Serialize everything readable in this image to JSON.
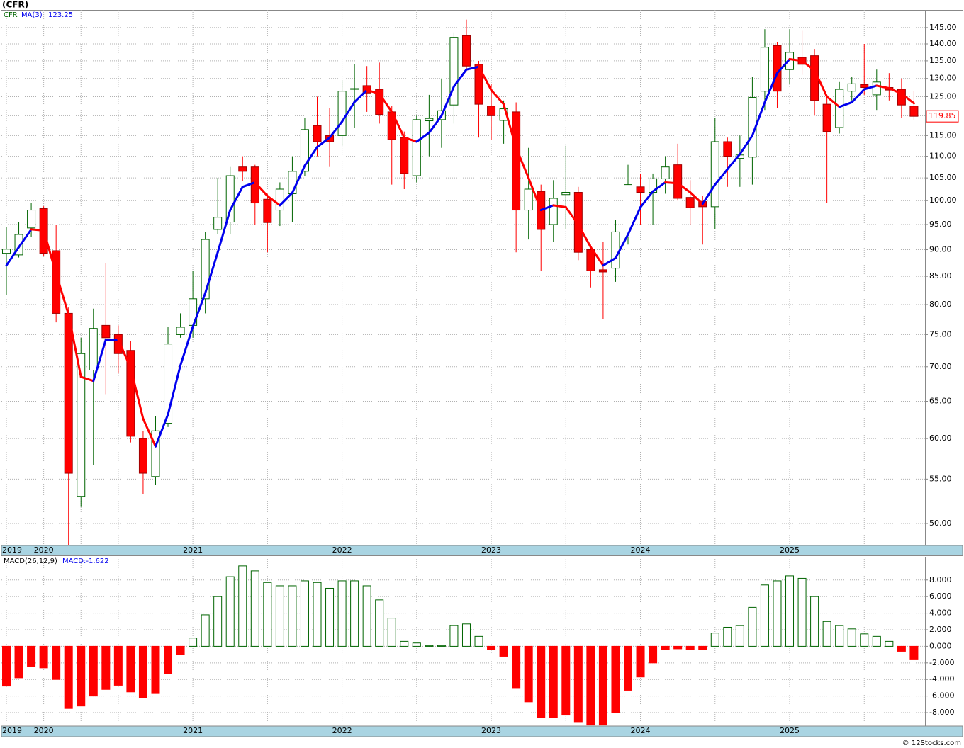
{
  "title": "(CFR)",
  "footer": "© 12Stocks.com",
  "chart_data": [
    {
      "type": "candlestick",
      "log": true,
      "grid": true,
      "categories": [
        "2019",
        null,
        null,
        "2020",
        null,
        null,
        null,
        null,
        null,
        null,
        null,
        null,
        null,
        null,
        null,
        "2021",
        null,
        null,
        null,
        null,
        null,
        null,
        null,
        null,
        null,
        null,
        null,
        "2022",
        null,
        null,
        null,
        null,
        null,
        null,
        null,
        null,
        null,
        null,
        null,
        "2023",
        null,
        null,
        null,
        null,
        null,
        null,
        null,
        null,
        null,
        null,
        null,
        "2024",
        null,
        null,
        null,
        null,
        null,
        null,
        null,
        null,
        null,
        null,
        null,
        "2025",
        null,
        null,
        null,
        null,
        null,
        null,
        null,
        null,
        null,
        null
      ],
      "series": [
        {
          "type": "candlestick",
          "name": "CFR",
          "color": "#006400",
          "down_color": "#ff0000",
          "open": [
            89.3,
            89,
            94.3,
            98.3,
            89.8,
            78.5,
            53,
            69.5,
            76.5,
            75,
            72.5,
            60,
            55.3,
            62,
            75,
            76.5,
            81,
            94,
            95.5,
            107.5,
            107.5,
            100.3,
            98,
            101.5,
            106.5,
            117.5,
            115,
            115,
            127,
            128,
            127,
            121,
            114.5,
            105.5,
            118.7,
            119,
            122.8,
            142.5,
            134,
            122.5,
            118.8,
            121,
            98,
            102,
            95,
            101.3,
            101.8,
            90,
            86.2,
            86.5,
            92.5,
            103,
            101.8,
            104.8,
            108,
            100.7,
            99.8,
            98.7,
            113.5,
            109.5,
            109.8,
            126.5,
            139.5,
            132.5,
            136,
            136.5,
            123,
            117,
            126.5,
            128.3,
            125.5,
            127.5,
            127,
            122.5
          ],
          "high": [
            94.5,
            95.5,
            99.5,
            98.8,
            95,
            79.5,
            74.5,
            79.3,
            87.5,
            76.5,
            74,
            61,
            63,
            76.3,
            78.5,
            86,
            93.5,
            105,
            107.5,
            110,
            108,
            101.5,
            104,
            110,
            119.5,
            125,
            122,
            129.5,
            134,
            133.5,
            134.5,
            122.5,
            116,
            120,
            125.5,
            130,
            143.5,
            147.5,
            135,
            128.5,
            124,
            123.5,
            112,
            103.5,
            104.5,
            112.5,
            103,
            91,
            91.5,
            96,
            108,
            106,
            106,
            110,
            113,
            104.5,
            101,
            119.5,
            114.5,
            115,
            130.5,
            144.5,
            140.5,
            144.5,
            144,
            138.5,
            125,
            129,
            130.5,
            140,
            132.5,
            131.5,
            130,
            126.5
          ],
          "low": [
            81.7,
            88.5,
            92.5,
            88.8,
            77,
            47.7,
            51.8,
            56.7,
            66,
            69,
            59.5,
            53.3,
            54.3,
            61.5,
            74.5,
            74.5,
            78.5,
            93,
            93,
            104.3,
            95,
            89.5,
            94.7,
            95.5,
            105.5,
            110,
            107.5,
            112.5,
            117,
            121,
            118,
            103.5,
            102.5,
            104,
            110,
            112,
            118,
            132,
            114.5,
            114,
            113,
            89.5,
            92,
            86,
            91.5,
            94,
            88,
            83,
            77.5,
            84,
            91,
            95,
            95,
            101.5,
            100,
            95,
            91,
            94,
            103,
            103,
            103.5,
            121.5,
            122,
            128.5,
            131,
            120,
            99.5,
            115.5,
            124,
            125.5,
            121.5,
            124,
            119.5,
            119
          ],
          "close": [
            90.1,
            93,
            98,
            89.3,
            78.5,
            55.7,
            72,
            76,
            74.5,
            72,
            60.3,
            55.7,
            61,
            73.5,
            76.2,
            81,
            92,
            96.5,
            105.5,
            106.5,
            99.5,
            95.4,
            102.5,
            106.5,
            116.5,
            113.5,
            113.5,
            126.5,
            127.2,
            126,
            120.3,
            114,
            106,
            119,
            119.3,
            121.3,
            142,
            133.5,
            123,
            120,
            121.8,
            98,
            102.5,
            94,
            100.5,
            101.8,
            89.5,
            86,
            85.8,
            93.5,
            103.5,
            101.8,
            104.8,
            107.5,
            100.5,
            98.5,
            98.7,
            113.5,
            110,
            110.3,
            124.8,
            139,
            126.5,
            137.5,
            134,
            124,
            116,
            127,
            128.5,
            127.5,
            129,
            126.8,
            122.8,
            119.85
          ]
        },
        {
          "type": "line",
          "name": "MA(3)",
          "color": "#0000ee",
          "down_color": "#ff0000",
          "values": [
            87,
            90.5,
            94,
            93.8,
            85.5,
            78.3,
            68.5,
            67.9,
            74.2,
            74.2,
            69.8,
            62.6,
            59,
            63.2,
            70.2,
            76.3,
            82,
            89.5,
            98,
            103,
            104,
            101,
            99,
            101.7,
            107.8,
            112.2,
            114.5,
            118.5,
            123.6,
            126.8,
            125.8,
            121,
            114.5,
            113.5,
            115.7,
            120,
            127.8,
            132.5,
            133.3,
            126.8,
            123,
            112,
            105,
            98,
            99,
            98.6,
            95,
            90.5,
            87,
            88.4,
            93,
            98.6,
            102,
            104,
            103.8,
            101.8,
            99.3,
            103.5,
            107,
            110.5,
            115,
            123.5,
            131.5,
            135.5,
            135,
            132.3,
            125,
            122.3,
            123.5,
            127,
            128,
            127.3,
            125.8,
            123.25
          ]
        }
      ],
      "ylim": [
        47.7,
        150.6
      ],
      "yticks": [
        {
          "value": 50,
          "label": "50.00"
        },
        {
          "value": 55,
          "label": "55.00"
        },
        {
          "value": 60,
          "label": "60.00"
        },
        {
          "value": 65,
          "label": "65.00"
        },
        {
          "value": 70,
          "label": "70.00"
        },
        {
          "value": 75,
          "label": "75.00"
        },
        {
          "value": 80,
          "label": "80.00"
        },
        {
          "value": 85,
          "label": "85.00"
        },
        {
          "value": 90,
          "label": "90.00"
        },
        {
          "value": 95,
          "label": "95.00"
        },
        {
          "value": 100,
          "label": "100.00"
        },
        {
          "value": 105,
          "label": "105.00"
        },
        {
          "value": 110,
          "label": "110.00"
        },
        {
          "value": 115,
          "label": "115.00"
        },
        {
          "value": 120,
          "label": "120.00"
        },
        {
          "value": 125,
          "label": "125.00"
        },
        {
          "value": 130,
          "label": "130.00"
        },
        {
          "value": 135,
          "label": "135.00"
        },
        {
          "value": 140,
          "label": "140.00"
        },
        {
          "value": 145,
          "label": "145.00"
        }
      ]
    },
    {
      "type": "bar",
      "title": "MACD(26,12,9)",
      "caption": "MACD:-1.622",
      "grid": true,
      "categories": [
        "2019",
        null,
        null,
        "2020",
        null,
        null,
        null,
        null,
        null,
        null,
        null,
        null,
        null,
        null,
        null,
        "2021",
        null,
        null,
        null,
        null,
        null,
        null,
        null,
        null,
        null,
        null,
        null,
        "2022",
        null,
        null,
        null,
        null,
        null,
        null,
        null,
        null,
        null,
        null,
        null,
        "2023",
        null,
        null,
        null,
        null,
        null,
        null,
        null,
        null,
        null,
        null,
        null,
        "2024",
        null,
        null,
        null,
        null,
        null,
        null,
        null,
        null,
        null,
        null,
        null,
        "2025",
        null,
        null,
        null,
        null,
        null,
        null,
        null,
        null,
        null,
        null
      ],
      "color": "#006400",
      "negative_color": "#ff0000",
      "values": [
        -4.8,
        -3.8,
        -2.4,
        -2.6,
        -4,
        -7.5,
        -7.2,
        -6,
        -5.2,
        -4.7,
        -5.5,
        -6.2,
        -5.7,
        -3.3,
        -1,
        1,
        3.8,
        6,
        8.4,
        9.7,
        9.1,
        7.7,
        7.3,
        7.3,
        7.9,
        7.7,
        7,
        7.9,
        7.9,
        7.3,
        5.6,
        3.4,
        0.6,
        0.4,
        0.1,
        0.1,
        2.5,
        2.7,
        1.2,
        -0.4,
        -1.2,
        -5,
        -6.7,
        -8.6,
        -8.6,
        -8.3,
        -9.1,
        -9.5,
        -9.5,
        -8,
        -5.3,
        -3.7,
        -2,
        -0.4,
        -0.3,
        -0.4,
        -0.4,
        1.6,
        2.3,
        2.5,
        4.7,
        7.4,
        7.9,
        8.5,
        8.2,
        6,
        3,
        2.5,
        2.1,
        1.5,
        1.2,
        0.6,
        -0.6,
        -1.622
      ],
      "ylim": [
        -9.62,
        10.8
      ],
      "yticks": [
        {
          "value": -8,
          "label": "-8.000"
        },
        {
          "value": -6,
          "label": "-6.000"
        },
        {
          "value": -4,
          "label": "-4.000"
        },
        {
          "value": -2,
          "label": "-2.000"
        },
        {
          "value": 0,
          "label": "0.000"
        },
        {
          "value": 2,
          "label": "2.000"
        },
        {
          "value": 4,
          "label": "4.000"
        },
        {
          "value": 6,
          "label": "6.000"
        },
        {
          "value": 8,
          "label": "8.000"
        }
      ]
    }
  ]
}
